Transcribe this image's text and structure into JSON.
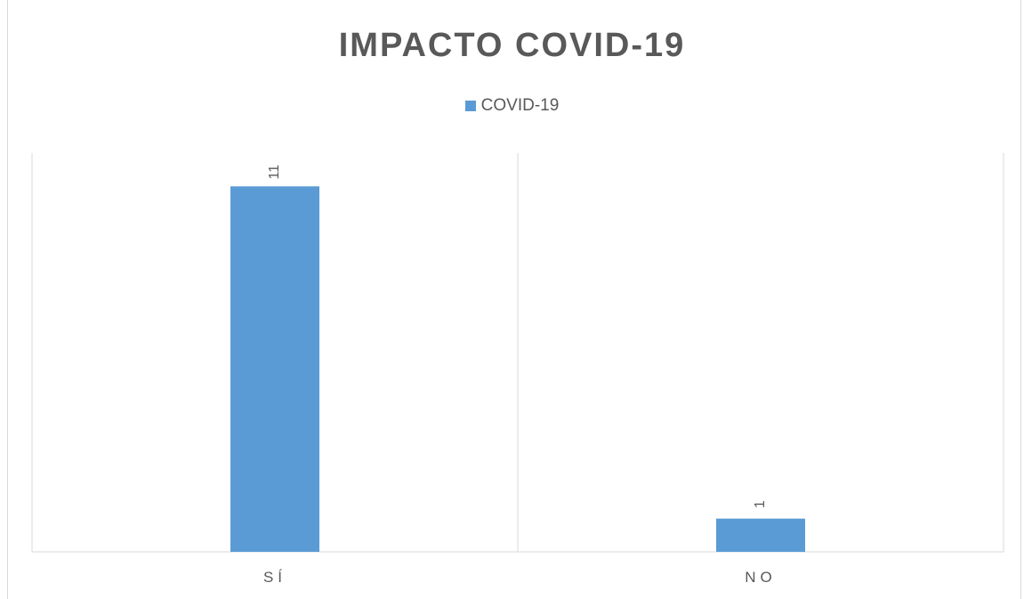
{
  "chart_data": {
    "type": "bar",
    "title": "IMPACTO COVID-19",
    "categories": [
      "SÍ",
      "NO"
    ],
    "series": [
      {
        "name": "COVID-19",
        "values": [
          11,
          1
        ]
      }
    ],
    "ylim": [
      0,
      12
    ],
    "legend_position": "top",
    "data_labels": true,
    "colors": {
      "bar": "#5b9bd5",
      "gridline": "#d9d9d9",
      "text": "#595959"
    }
  }
}
